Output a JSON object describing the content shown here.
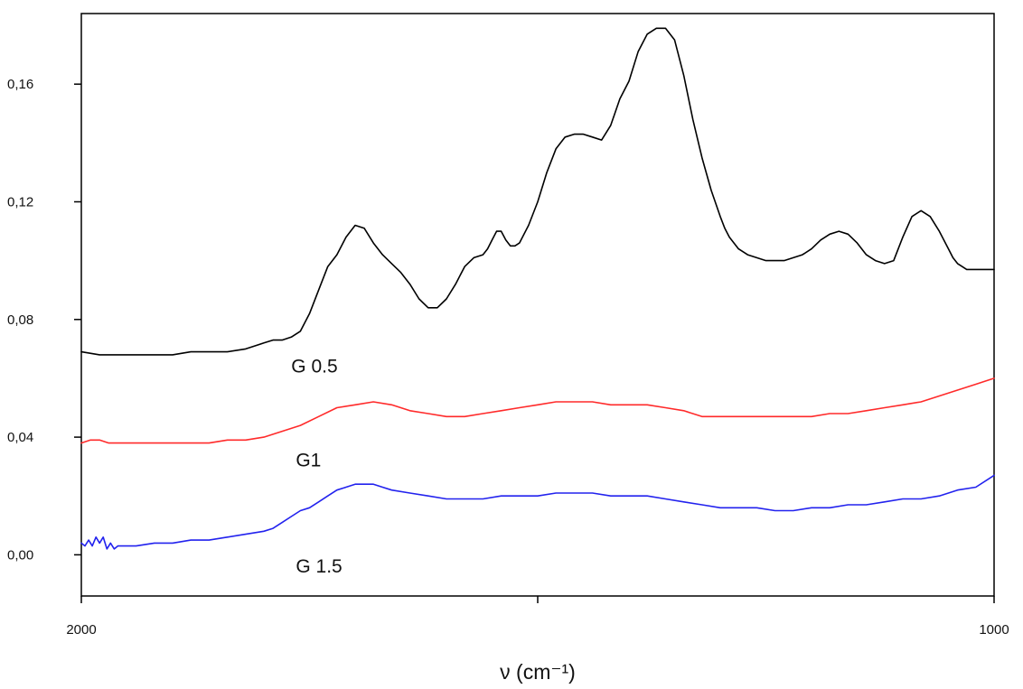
{
  "chart_data": {
    "type": "line",
    "xlabel": "ν (cm⁻¹)",
    "xlim": [
      2000,
      1000
    ],
    "ylim": [
      -0.014,
      0.184
    ],
    "x_ticks": [
      {
        "value": 2000,
        "label": "2000"
      },
      {
        "value": 1500,
        "label": ""
      },
      {
        "value": 1000,
        "label": "1000"
      }
    ],
    "y_ticks": [
      {
        "value": 0.0,
        "label": "0,00"
      },
      {
        "value": 0.04,
        "label": "0,04"
      },
      {
        "value": 0.08,
        "label": "0,08"
      },
      {
        "value": 0.12,
        "label": "0,12"
      },
      {
        "value": 0.16,
        "label": "0,16"
      }
    ],
    "grid": false,
    "series": [
      {
        "name": "G 0.5",
        "color": "#000000",
        "label_at": {
          "x": 1770,
          "y": 0.062
        },
        "x": [
          2000,
          1980,
          1960,
          1940,
          1920,
          1900,
          1880,
          1860,
          1840,
          1820,
          1800,
          1790,
          1780,
          1770,
          1760,
          1750,
          1740,
          1730,
          1720,
          1710,
          1700,
          1690,
          1680,
          1670,
          1660,
          1650,
          1640,
          1630,
          1620,
          1610,
          1600,
          1590,
          1580,
          1570,
          1560,
          1555,
          1550,
          1545,
          1540,
          1535,
          1530,
          1525,
          1520,
          1510,
          1500,
          1490,
          1480,
          1470,
          1460,
          1450,
          1440,
          1430,
          1420,
          1410,
          1400,
          1390,
          1380,
          1370,
          1360,
          1350,
          1340,
          1330,
          1320,
          1310,
          1300,
          1295,
          1290,
          1280,
          1270,
          1260,
          1250,
          1240,
          1230,
          1220,
          1210,
          1200,
          1190,
          1180,
          1170,
          1160,
          1150,
          1140,
          1130,
          1120,
          1110,
          1100,
          1090,
          1080,
          1070,
          1060,
          1050,
          1045,
          1040,
          1035,
          1030,
          1025,
          1020,
          1015,
          1010,
          1000
        ],
        "y": [
          0.069,
          0.068,
          0.068,
          0.068,
          0.068,
          0.068,
          0.069,
          0.069,
          0.069,
          0.07,
          0.072,
          0.073,
          0.073,
          0.074,
          0.076,
          0.082,
          0.09,
          0.098,
          0.102,
          0.108,
          0.112,
          0.111,
          0.106,
          0.102,
          0.099,
          0.096,
          0.092,
          0.087,
          0.084,
          0.084,
          0.087,
          0.092,
          0.098,
          0.101,
          0.102,
          0.104,
          0.107,
          0.11,
          0.11,
          0.107,
          0.105,
          0.105,
          0.106,
          0.112,
          0.12,
          0.13,
          0.138,
          0.142,
          0.143,
          0.143,
          0.142,
          0.141,
          0.146,
          0.155,
          0.161,
          0.171,
          0.177,
          0.179,
          0.179,
          0.175,
          0.163,
          0.148,
          0.135,
          0.124,
          0.115,
          0.111,
          0.108,
          0.104,
          0.102,
          0.101,
          0.1,
          0.1,
          0.1,
          0.101,
          0.102,
          0.104,
          0.107,
          0.109,
          0.11,
          0.109,
          0.106,
          0.102,
          0.1,
          0.099,
          0.1,
          0.108,
          0.115,
          0.117,
          0.115,
          0.11,
          0.104,
          0.101,
          0.099,
          0.098,
          0.097,
          0.097,
          0.097,
          0.097,
          0.097,
          0.097
        ]
      },
      {
        "name": "G1",
        "color": "#ff2a2a",
        "label_at": {
          "x": 1765,
          "y": 0.03
        },
        "x": [
          2000,
          1990,
          1980,
          1970,
          1960,
          1940,
          1920,
          1900,
          1880,
          1860,
          1840,
          1820,
          1800,
          1780,
          1760,
          1740,
          1720,
          1700,
          1680,
          1660,
          1640,
          1620,
          1600,
          1580,
          1560,
          1540,
          1520,
          1500,
          1480,
          1460,
          1440,
          1420,
          1400,
          1380,
          1360,
          1340,
          1320,
          1300,
          1280,
          1260,
          1240,
          1220,
          1200,
          1180,
          1160,
          1140,
          1120,
          1100,
          1080,
          1060,
          1040,
          1020,
          1000
        ],
        "y": [
          0.038,
          0.039,
          0.039,
          0.038,
          0.038,
          0.038,
          0.038,
          0.038,
          0.038,
          0.038,
          0.039,
          0.039,
          0.04,
          0.042,
          0.044,
          0.047,
          0.05,
          0.051,
          0.052,
          0.051,
          0.049,
          0.048,
          0.047,
          0.047,
          0.048,
          0.049,
          0.05,
          0.051,
          0.052,
          0.052,
          0.052,
          0.051,
          0.051,
          0.051,
          0.05,
          0.049,
          0.047,
          0.047,
          0.047,
          0.047,
          0.047,
          0.047,
          0.047,
          0.048,
          0.048,
          0.049,
          0.05,
          0.051,
          0.052,
          0.054,
          0.056,
          0.058,
          0.06
        ]
      },
      {
        "name": "G 1.5",
        "color": "#2222ee",
        "label_at": {
          "x": 1765,
          "y": -0.006
        },
        "x": [
          2000,
          1996,
          1992,
          1988,
          1984,
          1980,
          1976,
          1972,
          1968,
          1964,
          1960,
          1950,
          1940,
          1920,
          1900,
          1880,
          1860,
          1840,
          1820,
          1800,
          1790,
          1780,
          1770,
          1760,
          1750,
          1740,
          1730,
          1720,
          1710,
          1700,
          1690,
          1680,
          1670,
          1660,
          1640,
          1620,
          1600,
          1580,
          1560,
          1540,
          1520,
          1500,
          1480,
          1460,
          1440,
          1420,
          1400,
          1380,
          1360,
          1340,
          1320,
          1300,
          1280,
          1260,
          1240,
          1220,
          1200,
          1180,
          1160,
          1140,
          1120,
          1100,
          1080,
          1060,
          1040,
          1020,
          1000
        ],
        "y": [
          0.004,
          0.003,
          0.005,
          0.003,
          0.006,
          0.004,
          0.006,
          0.002,
          0.004,
          0.002,
          0.003,
          0.003,
          0.003,
          0.004,
          0.004,
          0.005,
          0.005,
          0.006,
          0.007,
          0.008,
          0.009,
          0.011,
          0.013,
          0.015,
          0.016,
          0.018,
          0.02,
          0.022,
          0.023,
          0.024,
          0.024,
          0.024,
          0.023,
          0.022,
          0.021,
          0.02,
          0.019,
          0.019,
          0.019,
          0.02,
          0.02,
          0.02,
          0.021,
          0.021,
          0.021,
          0.02,
          0.02,
          0.02,
          0.019,
          0.018,
          0.017,
          0.016,
          0.016,
          0.016,
          0.015,
          0.015,
          0.016,
          0.016,
          0.017,
          0.017,
          0.018,
          0.019,
          0.019,
          0.02,
          0.022,
          0.023,
          0.027
        ]
      }
    ]
  }
}
